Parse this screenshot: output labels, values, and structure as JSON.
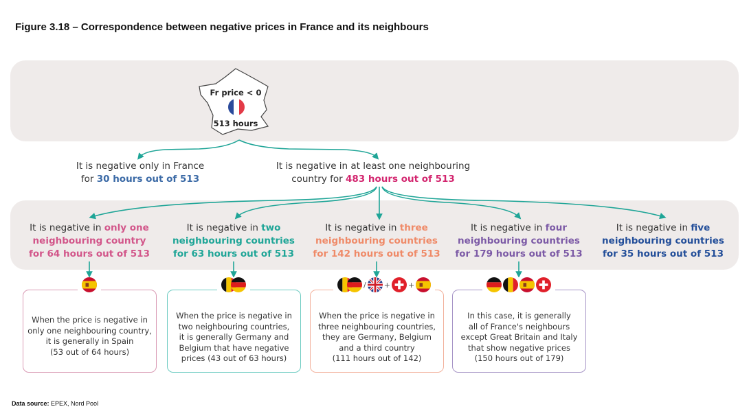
{
  "title": "Figure 3.18 – Correspondence between negative prices in France and its neighbours",
  "france": {
    "label_top": "Fr price < 0",
    "label_bottom": "513 hours",
    "flag": "france-flag-icon"
  },
  "level1": [
    {
      "text": "It is negative only in France",
      "pre": "for ",
      "highlight": "30 hours out of 513",
      "color": "#3b6aa6"
    },
    {
      "text": "It is negative in at least one neighbouring",
      "pre": "country for ",
      "highlight": "483 hours out of 513",
      "color": "#d3266f"
    }
  ],
  "columns": [
    {
      "pre": "It is negative in ",
      "hl1": "only one",
      "hl2": "neighbouring country",
      "hl3": "for 64 hours out of 513",
      "color": "#d2568a"
    },
    {
      "pre": "It is negative in ",
      "hl1": "two",
      "hl2": "neighbouring countries",
      "hl3": "for 63 hours out of 513",
      "color": "#1fa597"
    },
    {
      "pre": "It is negative in ",
      "hl1": "three",
      "hl2": "neighbouring countries",
      "hl3": "for 142 hours out of 513",
      "color": "#ef8a68"
    },
    {
      "pre": "It is negative in ",
      "hl1": "four",
      "hl2": "neighbouring countries",
      "hl3": "for 179 hours out of 513",
      "color": "#7c5aa6"
    },
    {
      "pre": "It is negative in ",
      "hl1": "five",
      "hl2": "neighbouring countries",
      "hl3": "for 35 hours out of 513",
      "color": "#234e99"
    }
  ],
  "boxes": [
    {
      "lines": [
        "When the price is negative in",
        "only one neighbouring country,",
        "it is generally in Spain",
        "(53 out of 64 hours)"
      ],
      "flags": [
        "spain"
      ],
      "color": "#d99ab4"
    },
    {
      "lines": [
        "When the price is negative in",
        "two neighbouring countries,",
        "it is generally Germany and",
        "Belgium that have negative",
        "prices (43 out of 63 hours)"
      ],
      "flags": [
        "belgium-germany"
      ],
      "color": "#6ccbc1"
    },
    {
      "lines": [
        "When the price is negative in",
        "three neighbouring countries,",
        "they are Germany, Belgium",
        "and a third country",
        "(111 hours out of 142)"
      ],
      "flags": [
        "belgium-germany",
        "/",
        "uk",
        "+",
        "switzerland",
        "+",
        "spain"
      ],
      "color": "#f2b19c"
    },
    {
      "lines": [
        "In this case, it is generally",
        "all of France's neighbours",
        "except Great Britain and Italy",
        "that show negative prices",
        "(150 hours out of 179)"
      ],
      "flags": [
        "germany",
        "belgium",
        "spain",
        "switzerland"
      ],
      "color": "#a694c6"
    }
  ],
  "source": {
    "label": "Data source:",
    "value": " EPEX, Nord Pool"
  },
  "accent_line_color": "#1fa597"
}
